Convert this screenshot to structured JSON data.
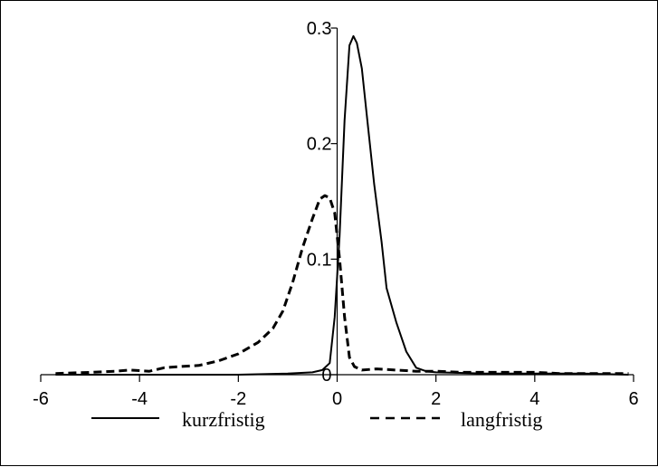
{
  "chart_data": {
    "type": "line",
    "title": "",
    "xlabel": "",
    "ylabel": "",
    "xlim": [
      -6,
      6
    ],
    "ylim": [
      0,
      0.3
    ],
    "x_ticks": [
      -6,
      -4,
      -2,
      0,
      2,
      4,
      6
    ],
    "x_tick_labels": [
      "-6",
      "-4",
      "-2",
      "0",
      "2",
      "4",
      "6"
    ],
    "y_ticks": [
      0,
      0.1,
      0.2,
      0.3
    ],
    "y_tick_labels": [
      "0",
      "0.1",
      "0.2",
      "0.3"
    ],
    "grid": false,
    "legend_position": "bottom",
    "series": [
      {
        "name": "kurzfristig",
        "style": "solid",
        "color": "#000000",
        "x": [
          -5.7,
          -3.0,
          -2.0,
          -1.0,
          -0.5,
          -0.3,
          -0.15,
          -0.05,
          0.05,
          0.15,
          0.25,
          0.33,
          0.4,
          0.5,
          0.6,
          0.75,
          0.9,
          1.0,
          1.2,
          1.4,
          1.6,
          1.8,
          2.0,
          3.0,
          4.0,
          5.0,
          5.9
        ],
        "y": [
          0.0,
          0.0,
          0.0,
          0.001,
          0.002,
          0.004,
          0.01,
          0.05,
          0.12,
          0.22,
          0.285,
          0.293,
          0.287,
          0.265,
          0.225,
          0.165,
          0.115,
          0.075,
          0.045,
          0.02,
          0.006,
          0.003,
          0.002,
          0.001,
          0.001,
          0.001,
          0.0
        ]
      },
      {
        "name": "langfristig",
        "style": "dashed",
        "color": "#000000",
        "x": [
          -5.7,
          -5.0,
          -4.5,
          -4.2,
          -3.8,
          -3.5,
          -3.2,
          -2.8,
          -2.4,
          -2.0,
          -1.6,
          -1.3,
          -1.1,
          -0.9,
          -0.7,
          -0.5,
          -0.35,
          -0.25,
          -0.15,
          -0.05,
          0.05,
          0.15,
          0.25,
          0.35,
          0.5,
          0.8,
          1.2,
          1.6,
          2.0,
          2.5,
          3.0,
          3.5,
          4.0,
          4.5,
          5.0,
          5.5,
          5.9
        ],
        "y": [
          0.001,
          0.002,
          0.003,
          0.004,
          0.003,
          0.006,
          0.007,
          0.008,
          0.012,
          0.018,
          0.028,
          0.04,
          0.055,
          0.08,
          0.11,
          0.135,
          0.152,
          0.155,
          0.153,
          0.14,
          0.1,
          0.05,
          0.015,
          0.007,
          0.004,
          0.005,
          0.004,
          0.003,
          0.003,
          0.002,
          0.002,
          0.002,
          0.002,
          0.001,
          0.001,
          0.001,
          0.001
        ]
      }
    ]
  }
}
